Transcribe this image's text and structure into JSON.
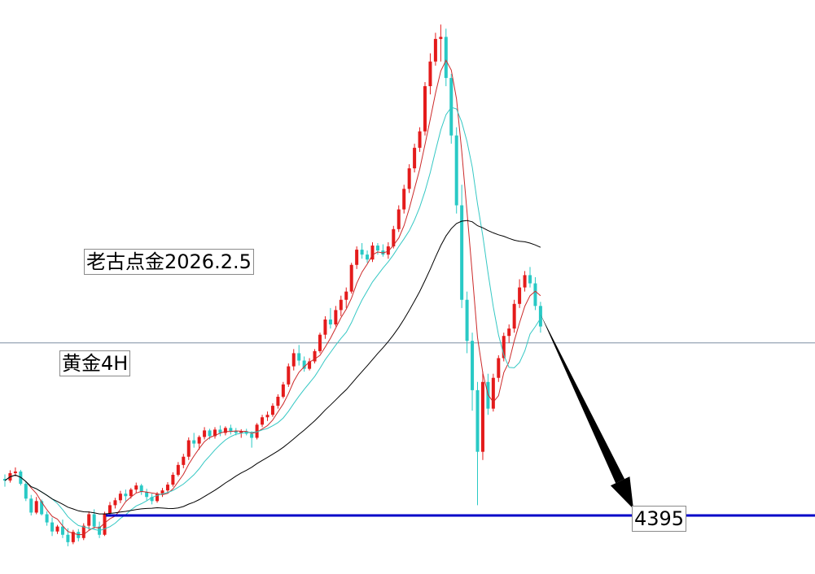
{
  "labels": {
    "title": "老古点金2026.2.5",
    "period": "黄金4H",
    "target": "4395"
  },
  "colors": {
    "up": "#e41b1b",
    "down": "#29c9c5",
    "ma_fast": "#cc2a2a",
    "ma_mid": "#35c8c4",
    "ma_slow": "#000000",
    "support_line": "#0000c8",
    "ref_line": "#7d8da3",
    "arrow": "#000000"
  },
  "chart_data": {
    "type": "candlestick",
    "title": "老古点金2026.2.5",
    "subtitle": "黄金4H",
    "grid": false,
    "ohlc": [
      [
        4484,
        4495,
        4465,
        4480
      ],
      [
        4480,
        4505,
        4475,
        4498
      ],
      [
        4498,
        4512,
        4490,
        4502
      ],
      [
        4502,
        4506,
        4468,
        4472
      ],
      [
        4472,
        4478,
        4430,
        4436
      ],
      [
        4436,
        4445,
        4395,
        4402
      ],
      [
        4402,
        4440,
        4398,
        4430
      ],
      [
        4430,
        4434,
        4395,
        4398
      ],
      [
        4398,
        4405,
        4370,
        4378
      ],
      [
        4378,
        4390,
        4345,
        4356
      ],
      [
        4356,
        4372,
        4350,
        4368
      ],
      [
        4368,
        4385,
        4340,
        4348
      ],
      [
        4348,
        4364,
        4320,
        4330
      ],
      [
        4330,
        4360,
        4325,
        4355
      ],
      [
        4355,
        4362,
        4332,
        4340
      ],
      [
        4340,
        4376,
        4335,
        4370
      ],
      [
        4370,
        4405,
        4360,
        4398
      ],
      [
        4398,
        4410,
        4362,
        4368
      ],
      [
        4368,
        4380,
        4340,
        4348
      ],
      [
        4348,
        4404,
        4345,
        4400
      ],
      [
        4400,
        4428,
        4392,
        4420
      ],
      [
        4420,
        4438,
        4412,
        4432
      ],
      [
        4432,
        4455,
        4425,
        4448
      ],
      [
        4448,
        4458,
        4430,
        4442
      ],
      [
        4442,
        4462,
        4436,
        4458
      ],
      [
        4458,
        4475,
        4450,
        4468
      ],
      [
        4468,
        4472,
        4445,
        4452
      ],
      [
        4452,
        4460,
        4432,
        4440
      ],
      [
        4440,
        4448,
        4422,
        4430
      ],
      [
        4430,
        4452,
        4426,
        4448
      ],
      [
        4448,
        4462,
        4440,
        4456
      ],
      [
        4456,
        4476,
        4450,
        4470
      ],
      [
        4470,
        4500,
        4465,
        4494
      ],
      [
        4494,
        4525,
        4490,
        4518
      ],
      [
        4518,
        4545,
        4510,
        4538
      ],
      [
        4538,
        4585,
        4530,
        4578
      ],
      [
        4578,
        4596,
        4560,
        4570
      ],
      [
        4570,
        4590,
        4555,
        4586
      ],
      [
        4586,
        4610,
        4580,
        4602
      ],
      [
        4602,
        4606,
        4580,
        4588
      ],
      [
        4588,
        4610,
        4582,
        4604
      ],
      [
        4604,
        4614,
        4588,
        4596
      ],
      [
        4596,
        4612,
        4590,
        4608
      ],
      [
        4608,
        4616,
        4592,
        4600
      ],
      [
        4600,
        4608,
        4590,
        4596
      ],
      [
        4596,
        4605,
        4584,
        4600
      ],
      [
        4600,
        4606,
        4590,
        4594
      ],
      [
        4594,
        4600,
        4560,
        4584
      ],
      [
        4584,
        4620,
        4580,
        4616
      ],
      [
        4616,
        4640,
        4610,
        4634
      ],
      [
        4634,
        4648,
        4625,
        4640
      ],
      [
        4640,
        4668,
        4635,
        4662
      ],
      [
        4662,
        4690,
        4655,
        4684
      ],
      [
        4684,
        4720,
        4680,
        4714
      ],
      [
        4714,
        4765,
        4708,
        4758
      ],
      [
        4758,
        4800,
        4748,
        4790
      ],
      [
        4790,
        4810,
        4760,
        4772
      ],
      [
        4772,
        4782,
        4745,
        4752
      ],
      [
        4752,
        4778,
        4748,
        4770
      ],
      [
        4770,
        4800,
        4765,
        4795
      ],
      [
        4795,
        4840,
        4790,
        4835
      ],
      [
        4835,
        4880,
        4825,
        4872
      ],
      [
        4872,
        4900,
        4850,
        4860
      ],
      [
        4860,
        4905,
        4855,
        4895
      ],
      [
        4895,
        4930,
        4880,
        4920
      ],
      [
        4920,
        4950,
        4900,
        4940
      ],
      [
        4940,
        5010,
        4935,
        5005
      ],
      [
        5005,
        5050,
        4995,
        5042
      ],
      [
        5042,
        5058,
        5020,
        5030
      ],
      [
        5030,
        5040,
        5010,
        5018
      ],
      [
        5018,
        5060,
        5012,
        5052
      ],
      [
        5052,
        5058,
        5030,
        5040
      ],
      [
        5040,
        5055,
        5025,
        5030
      ],
      [
        5030,
        5060,
        5020,
        5050
      ],
      [
        5050,
        5100,
        5045,
        5092
      ],
      [
        5092,
        5150,
        5085,
        5140
      ],
      [
        5140,
        5200,
        5130,
        5190
      ],
      [
        5190,
        5250,
        5180,
        5240
      ],
      [
        5240,
        5300,
        5230,
        5290
      ],
      [
        5290,
        5340,
        5280,
        5330
      ],
      [
        5330,
        5450,
        5320,
        5440
      ],
      [
        5440,
        5520,
        5420,
        5500
      ],
      [
        5500,
        5570,
        5490,
        5555
      ],
      [
        5555,
        5590,
        5500,
        5560
      ],
      [
        5560,
        5580,
        5440,
        5460
      ],
      [
        5460,
        5470,
        5300,
        5320
      ],
      [
        5320,
        5340,
        5130,
        5150
      ],
      [
        5150,
        5200,
        4900,
        4920
      ],
      [
        4920,
        4940,
        4790,
        4820
      ],
      [
        4820,
        4840,
        4650,
        4700
      ],
      [
        4700,
        4720,
        4420,
        4550
      ],
      [
        4550,
        4745,
        4530,
        4720
      ],
      [
        4720,
        4740,
        4640,
        4655
      ],
      [
        4655,
        4740,
        4648,
        4730
      ],
      [
        4730,
        4785,
        4720,
        4778
      ],
      [
        4778,
        4840,
        4770,
        4832
      ],
      [
        4832,
        4860,
        4815,
        4850
      ],
      [
        4850,
        4920,
        4840,
        4910
      ],
      [
        4910,
        4970,
        4900,
        4950
      ],
      [
        4950,
        4990,
        4940,
        4980
      ],
      [
        4980,
        5000,
        4950,
        4960
      ],
      [
        4960,
        4975,
        4895,
        4905
      ],
      [
        4905,
        4915,
        4840,
        4855
      ]
    ],
    "ma_periods": [
      5,
      10,
      30
    ],
    "support_level": 4395,
    "reference_level": 4815,
    "projection": {
      "from_bar": 102,
      "to_level": 4395
    },
    "ylim": [
      4300,
      5630
    ]
  }
}
